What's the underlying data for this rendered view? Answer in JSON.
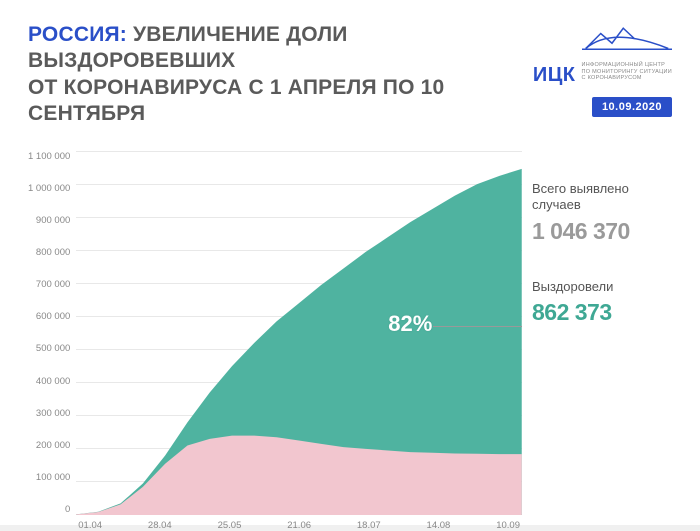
{
  "header": {
    "country": "РОССИЯ:",
    "rest1": " УВЕЛИЧЕНИЕ ДОЛИ ВЫЗДОРОВЕВШИХ",
    "rest2": "ОТ КОРОНАВИРУСА С 1 АПРЕЛЯ ПО 10 СЕНТЯБРЯ"
  },
  "logo": {
    "text": "ИЦК",
    "sub1": "ИНФОРМАЦИОННЫЙ ЦЕНТР",
    "sub2": "ПО МОНИТОРИНГУ СИТУАЦИИ",
    "sub3": "С КОРОНАВИРУСОМ",
    "color": "#2a4fc8"
  },
  "date_badge": "10.09.2020",
  "stats": {
    "total": {
      "label": "Всего выявлено случаев",
      "value": "1 046 370"
    },
    "recovered": {
      "label": "Выздоровели",
      "value": "862 373"
    }
  },
  "chart": {
    "type": "area",
    "percent_label": "82%",
    "percent_pos": {
      "left_pct": 70,
      "top_pct": 42
    },
    "y_axis": {
      "max": 1100000,
      "ticks": [
        "1 100 000",
        "1 000 000",
        "900 000",
        "800 000",
        "700 000",
        "600 000",
        "500 000",
        "400 000",
        "300 000",
        "200 000",
        "100 000",
        "0"
      ],
      "tick_fontsize": 9.5,
      "tick_color": "#888888"
    },
    "x_axis": {
      "labels": [
        "01.04",
        "28.04",
        "25.05",
        "21.06",
        "18.07",
        "14.08",
        "10.09"
      ],
      "tick_fontsize": 9.5,
      "tick_color": "#888888"
    },
    "colors": {
      "total_fill": "#4fb3a0",
      "active_fill": "#f2c6cf",
      "background": "#ffffff",
      "grid": "#e8e8e8"
    },
    "series": {
      "x": [
        0,
        5,
        10,
        15,
        20,
        25,
        30,
        35,
        40,
        45,
        50,
        55,
        60,
        65,
        70,
        75,
        80,
        85,
        90,
        95,
        100
      ],
      "total": [
        2,
        10,
        35,
        95,
        180,
        280,
        370,
        450,
        520,
        585,
        640,
        695,
        745,
        795,
        840,
        885,
        925,
        965,
        1000,
        1025,
        1046
      ],
      "active": [
        2,
        9,
        32,
        85,
        155,
        210,
        230,
        240,
        240,
        235,
        225,
        215,
        205,
        200,
        195,
        190,
        188,
        186,
        185,
        184,
        184
      ]
    }
  }
}
